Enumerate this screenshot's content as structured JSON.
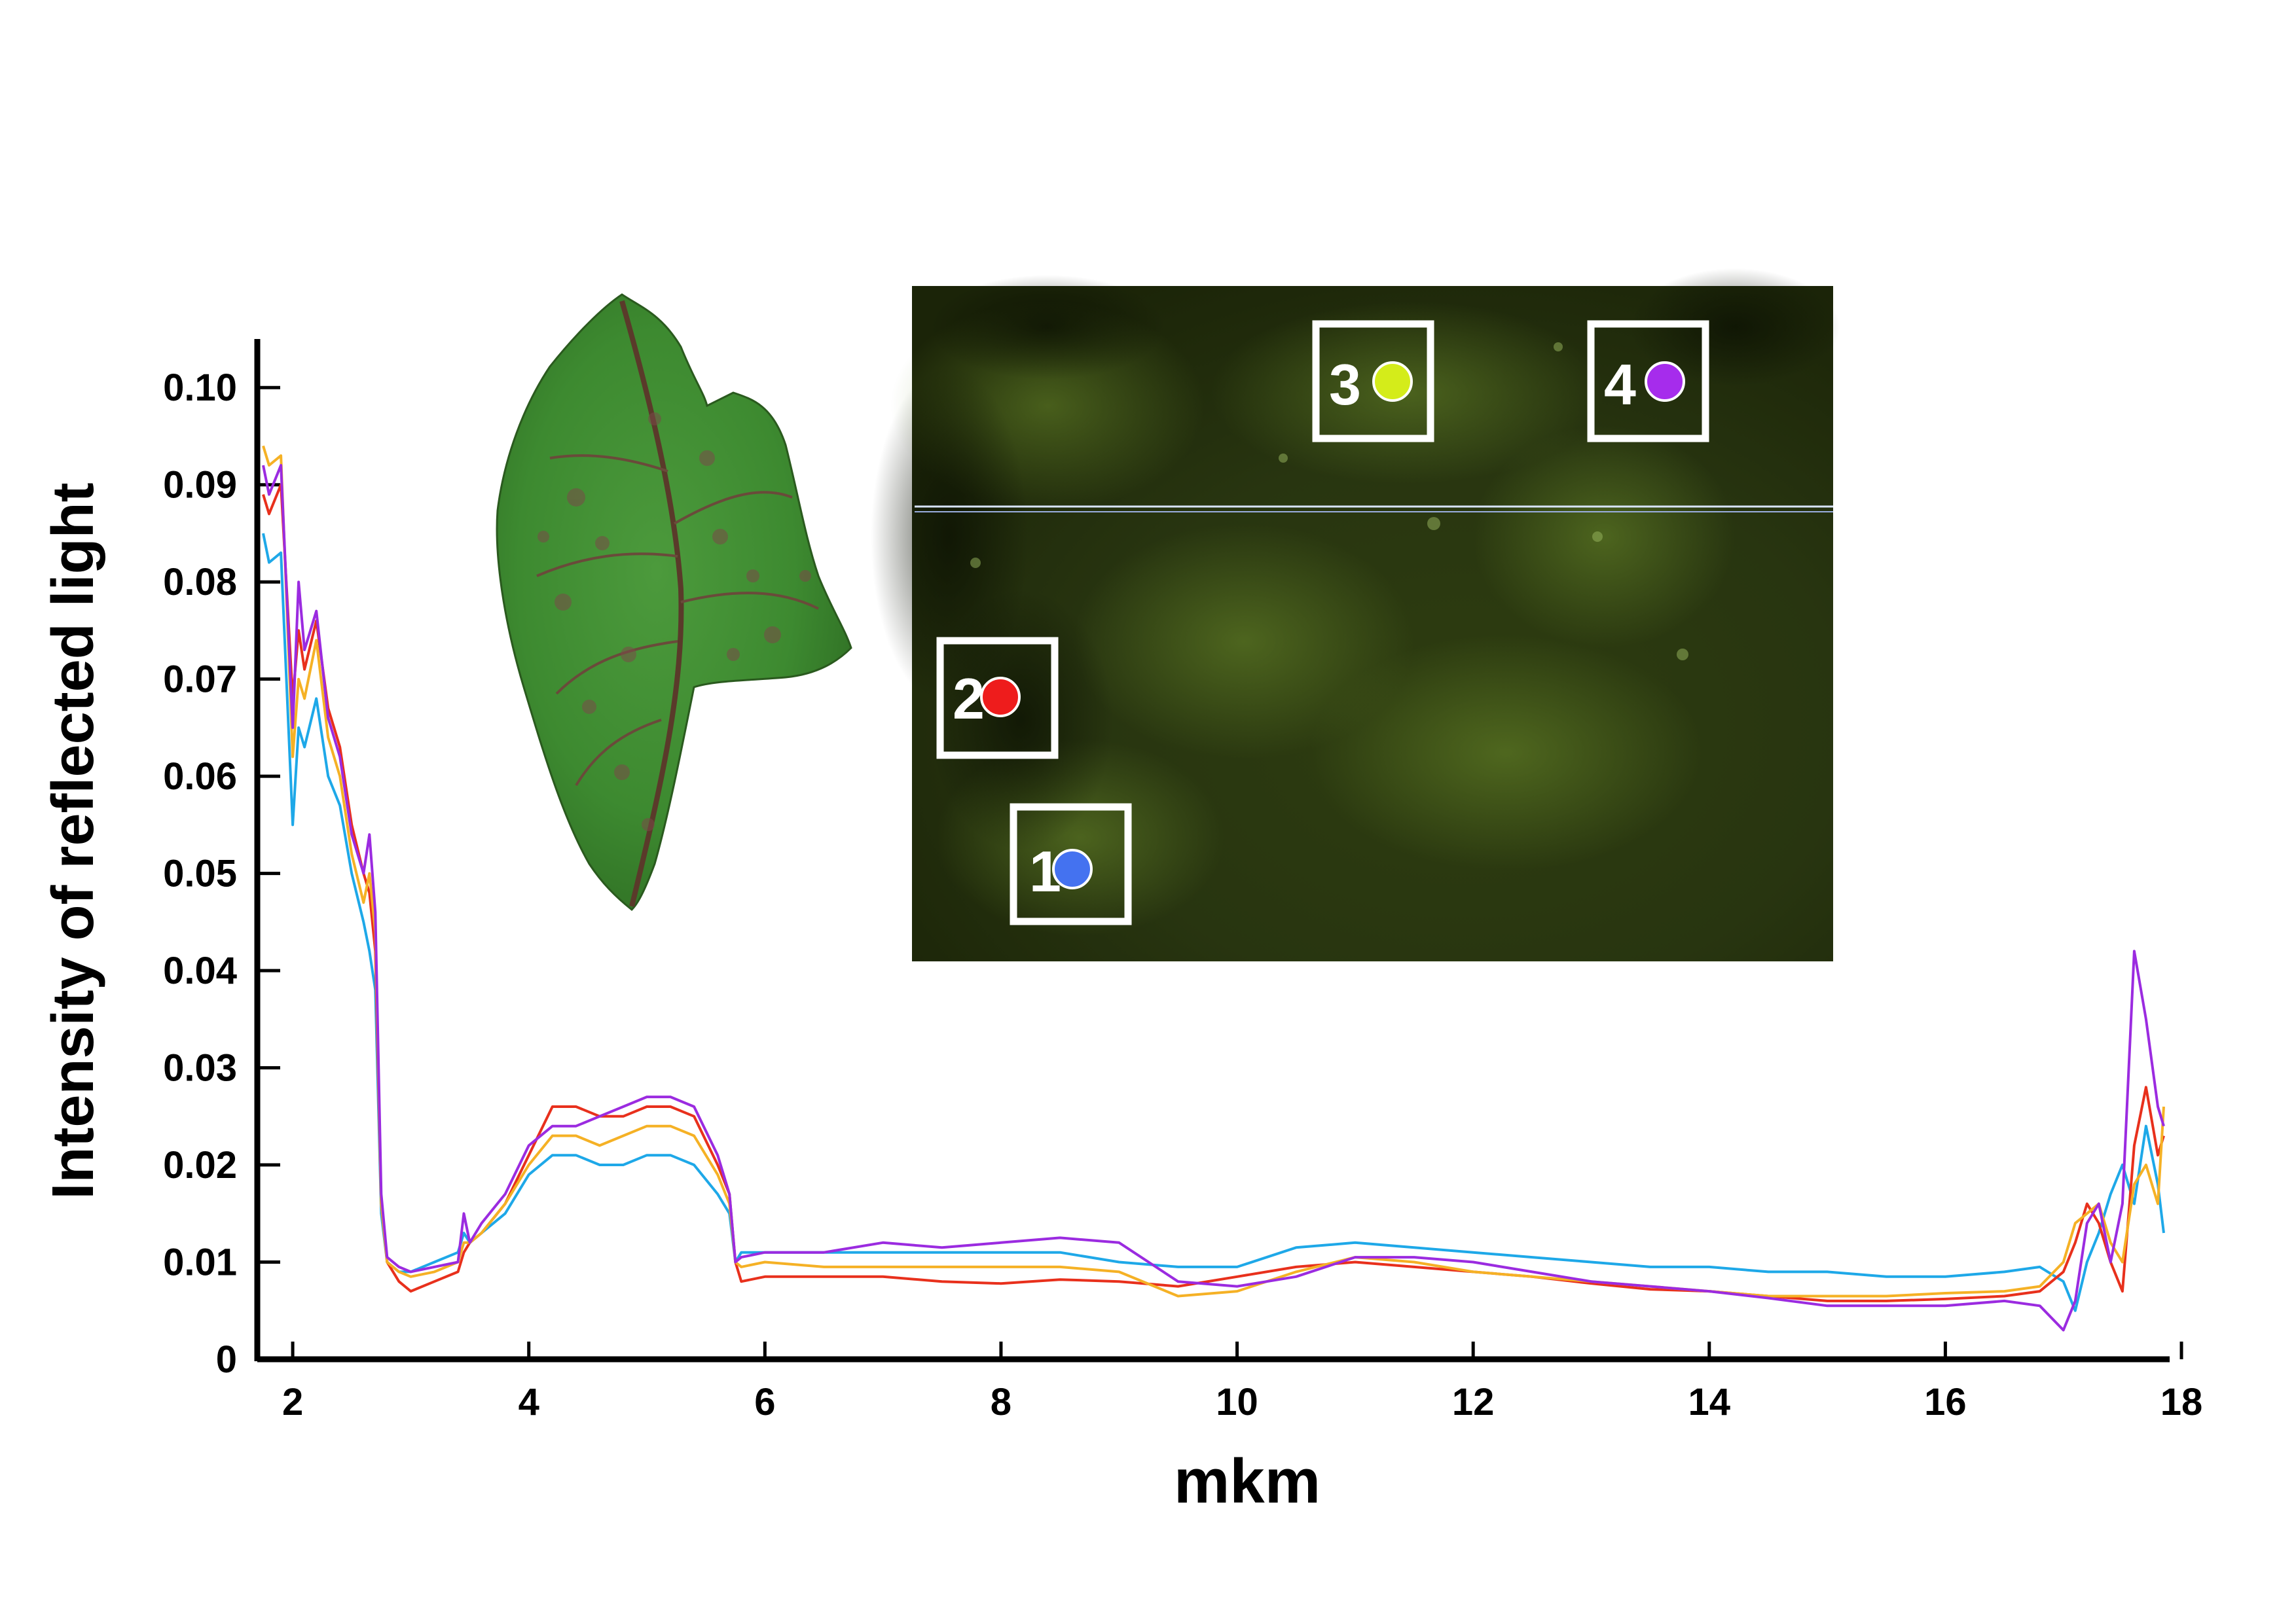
{
  "chart_data": {
    "type": "line",
    "title": "",
    "xlabel": "mkm",
    "ylabel": "Intensity of reflected light",
    "xlim": [
      1.7,
      17.9
    ],
    "ylim": [
      0,
      0.105
    ],
    "grid": false,
    "x_ticks": [
      2,
      4,
      6,
      8,
      10,
      12,
      14,
      16,
      18
    ],
    "x_tick_labels": [
      "2",
      "4",
      "6",
      "8",
      "10",
      "12",
      "14",
      "16",
      "18"
    ],
    "y_ticks": [
      0,
      0.01,
      0.02,
      0.03,
      0.04,
      0.05,
      0.06,
      0.07,
      0.08,
      0.09,
      0.1
    ],
    "y_tick_labels": [
      "0",
      "0.01",
      "0.02",
      "0.03",
      "0.04",
      "0.05",
      "0.06",
      "0.07",
      "0.08",
      "0.09",
      "0.10"
    ],
    "series": [
      {
        "marker_label": "1",
        "color": "#1ea8e8",
        "x": [
          1.75,
          1.8,
          1.9,
          2.0,
          2.05,
          2.1,
          2.2,
          2.3,
          2.4,
          2.5,
          2.6,
          2.65,
          2.7,
          2.75,
          2.8,
          2.9,
          3.0,
          3.2,
          3.4,
          3.45,
          3.5,
          3.6,
          3.8,
          4.0,
          4.2,
          4.4,
          4.6,
          4.8,
          5.0,
          5.2,
          5.4,
          5.6,
          5.7,
          5.75,
          5.8,
          6.0,
          6.5,
          7.0,
          7.5,
          8.0,
          8.5,
          9.0,
          9.5,
          10.0,
          10.5,
          11.0,
          11.5,
          12.0,
          12.5,
          13.0,
          13.5,
          14.0,
          14.5,
          15.0,
          15.5,
          16.0,
          16.5,
          16.8,
          17.0,
          17.1,
          17.2,
          17.3,
          17.4,
          17.5,
          17.6,
          17.7,
          17.8,
          17.85
        ],
        "y": [
          0.085,
          0.082,
          0.083,
          0.055,
          0.065,
          0.063,
          0.068,
          0.06,
          0.057,
          0.05,
          0.045,
          0.042,
          0.038,
          0.015,
          0.01,
          0.009,
          0.009,
          0.01,
          0.011,
          0.013,
          0.012,
          0.013,
          0.015,
          0.019,
          0.021,
          0.021,
          0.02,
          0.02,
          0.021,
          0.021,
          0.02,
          0.017,
          0.015,
          0.01,
          0.011,
          0.011,
          0.011,
          0.011,
          0.011,
          0.011,
          0.011,
          0.01,
          0.0095,
          0.0095,
          0.0115,
          0.012,
          0.0115,
          0.011,
          0.0105,
          0.01,
          0.0095,
          0.0095,
          0.009,
          0.009,
          0.0085,
          0.0085,
          0.009,
          0.0095,
          0.008,
          0.005,
          0.01,
          0.013,
          0.017,
          0.02,
          0.016,
          0.024,
          0.018,
          0.013
        ]
      },
      {
        "marker_label": "2",
        "color": "#e8301c",
        "x": [
          1.75,
          1.8,
          1.9,
          2.0,
          2.05,
          2.1,
          2.2,
          2.3,
          2.4,
          2.5,
          2.6,
          2.65,
          2.7,
          2.75,
          2.8,
          2.9,
          3.0,
          3.2,
          3.4,
          3.45,
          3.5,
          3.6,
          3.8,
          4.0,
          4.2,
          4.4,
          4.6,
          4.8,
          5.0,
          5.2,
          5.4,
          5.6,
          5.7,
          5.75,
          5.8,
          6.0,
          6.5,
          7.0,
          7.5,
          8.0,
          8.5,
          9.0,
          9.5,
          10.0,
          10.5,
          11.0,
          11.5,
          12.0,
          12.5,
          13.0,
          13.5,
          14.0,
          14.5,
          15.0,
          15.5,
          16.0,
          16.5,
          16.8,
          17.0,
          17.1,
          17.2,
          17.3,
          17.4,
          17.5,
          17.6,
          17.7,
          17.8,
          17.85
        ],
        "y": [
          0.089,
          0.087,
          0.09,
          0.068,
          0.075,
          0.071,
          0.076,
          0.067,
          0.063,
          0.055,
          0.05,
          0.048,
          0.042,
          0.016,
          0.01,
          0.008,
          0.007,
          0.008,
          0.009,
          0.011,
          0.012,
          0.013,
          0.016,
          0.021,
          0.026,
          0.026,
          0.025,
          0.025,
          0.026,
          0.026,
          0.025,
          0.02,
          0.017,
          0.01,
          0.008,
          0.0085,
          0.0085,
          0.0085,
          0.008,
          0.0078,
          0.0082,
          0.008,
          0.0075,
          0.0085,
          0.0095,
          0.01,
          0.0095,
          0.009,
          0.0085,
          0.0078,
          0.0072,
          0.007,
          0.0065,
          0.006,
          0.006,
          0.0062,
          0.0065,
          0.007,
          0.009,
          0.012,
          0.016,
          0.014,
          0.01,
          0.007,
          0.022,
          0.028,
          0.021,
          0.023
        ]
      },
      {
        "marker_label": "3",
        "color": "#f5b125",
        "x": [
          1.75,
          1.8,
          1.9,
          2.0,
          2.05,
          2.1,
          2.2,
          2.3,
          2.4,
          2.5,
          2.6,
          2.65,
          2.7,
          2.75,
          2.8,
          2.9,
          3.0,
          3.2,
          3.4,
          3.45,
          3.5,
          3.6,
          3.8,
          4.0,
          4.2,
          4.4,
          4.6,
          4.8,
          5.0,
          5.2,
          5.4,
          5.6,
          5.7,
          5.75,
          5.8,
          6.0,
          6.5,
          7.0,
          7.5,
          8.0,
          8.5,
          9.0,
          9.5,
          10.0,
          10.5,
          11.0,
          11.5,
          12.0,
          12.5,
          13.0,
          13.5,
          14.0,
          14.5,
          15.0,
          15.5,
          16.0,
          16.5,
          16.8,
          17.0,
          17.1,
          17.2,
          17.3,
          17.4,
          17.5,
          17.6,
          17.7,
          17.8,
          17.85
        ],
        "y": [
          0.094,
          0.092,
          0.093,
          0.062,
          0.07,
          0.068,
          0.074,
          0.064,
          0.06,
          0.052,
          0.047,
          0.05,
          0.044,
          0.016,
          0.01,
          0.009,
          0.0085,
          0.009,
          0.01,
          0.012,
          0.012,
          0.013,
          0.016,
          0.02,
          0.023,
          0.023,
          0.022,
          0.023,
          0.024,
          0.024,
          0.023,
          0.019,
          0.016,
          0.01,
          0.0095,
          0.01,
          0.0095,
          0.0095,
          0.0095,
          0.0095,
          0.0095,
          0.009,
          0.0065,
          0.007,
          0.009,
          0.0105,
          0.01,
          0.009,
          0.0085,
          0.008,
          0.0075,
          0.007,
          0.0065,
          0.0065,
          0.0065,
          0.0068,
          0.007,
          0.0075,
          0.01,
          0.014,
          0.015,
          0.016,
          0.012,
          0.01,
          0.018,
          0.02,
          0.016,
          0.026
        ]
      },
      {
        "marker_label": "4",
        "color": "#9b2be0",
        "x": [
          1.75,
          1.8,
          1.9,
          2.0,
          2.05,
          2.1,
          2.2,
          2.3,
          2.4,
          2.5,
          2.6,
          2.65,
          2.7,
          2.75,
          2.8,
          2.9,
          3.0,
          3.2,
          3.4,
          3.45,
          3.5,
          3.6,
          3.8,
          4.0,
          4.2,
          4.4,
          4.6,
          4.8,
          5.0,
          5.2,
          5.4,
          5.6,
          5.7,
          5.75,
          5.8,
          6.0,
          6.5,
          7.0,
          7.5,
          8.0,
          8.5,
          9.0,
          9.5,
          10.0,
          10.5,
          11.0,
          11.5,
          12.0,
          12.5,
          13.0,
          13.5,
          14.0,
          14.5,
          15.0,
          15.5,
          16.0,
          16.5,
          16.8,
          17.0,
          17.1,
          17.2,
          17.3,
          17.4,
          17.5,
          17.6,
          17.7,
          17.8,
          17.85
        ],
        "y": [
          0.092,
          0.089,
          0.092,
          0.065,
          0.08,
          0.073,
          0.077,
          0.066,
          0.062,
          0.054,
          0.05,
          0.054,
          0.046,
          0.017,
          0.0105,
          0.0095,
          0.009,
          0.0095,
          0.01,
          0.015,
          0.012,
          0.014,
          0.017,
          0.022,
          0.024,
          0.024,
          0.025,
          0.026,
          0.027,
          0.027,
          0.026,
          0.021,
          0.017,
          0.01,
          0.0105,
          0.011,
          0.011,
          0.012,
          0.0115,
          0.012,
          0.0125,
          0.012,
          0.008,
          0.0075,
          0.0085,
          0.0105,
          0.0105,
          0.01,
          0.009,
          0.008,
          0.0075,
          0.007,
          0.0063,
          0.0055,
          0.0055,
          0.0055,
          0.006,
          0.0055,
          0.003,
          0.006,
          0.014,
          0.016,
          0.01,
          0.016,
          0.042,
          0.035,
          0.026,
          0.024
        ]
      }
    ]
  },
  "inset": {
    "markers": [
      {
        "label": "1",
        "color": "#4472f0"
      },
      {
        "label": "2",
        "color": "#ee1c1c"
      },
      {
        "label": "3",
        "color": "#d4ec1a"
      },
      {
        "label": "4",
        "color": "#a62cec"
      }
    ]
  }
}
